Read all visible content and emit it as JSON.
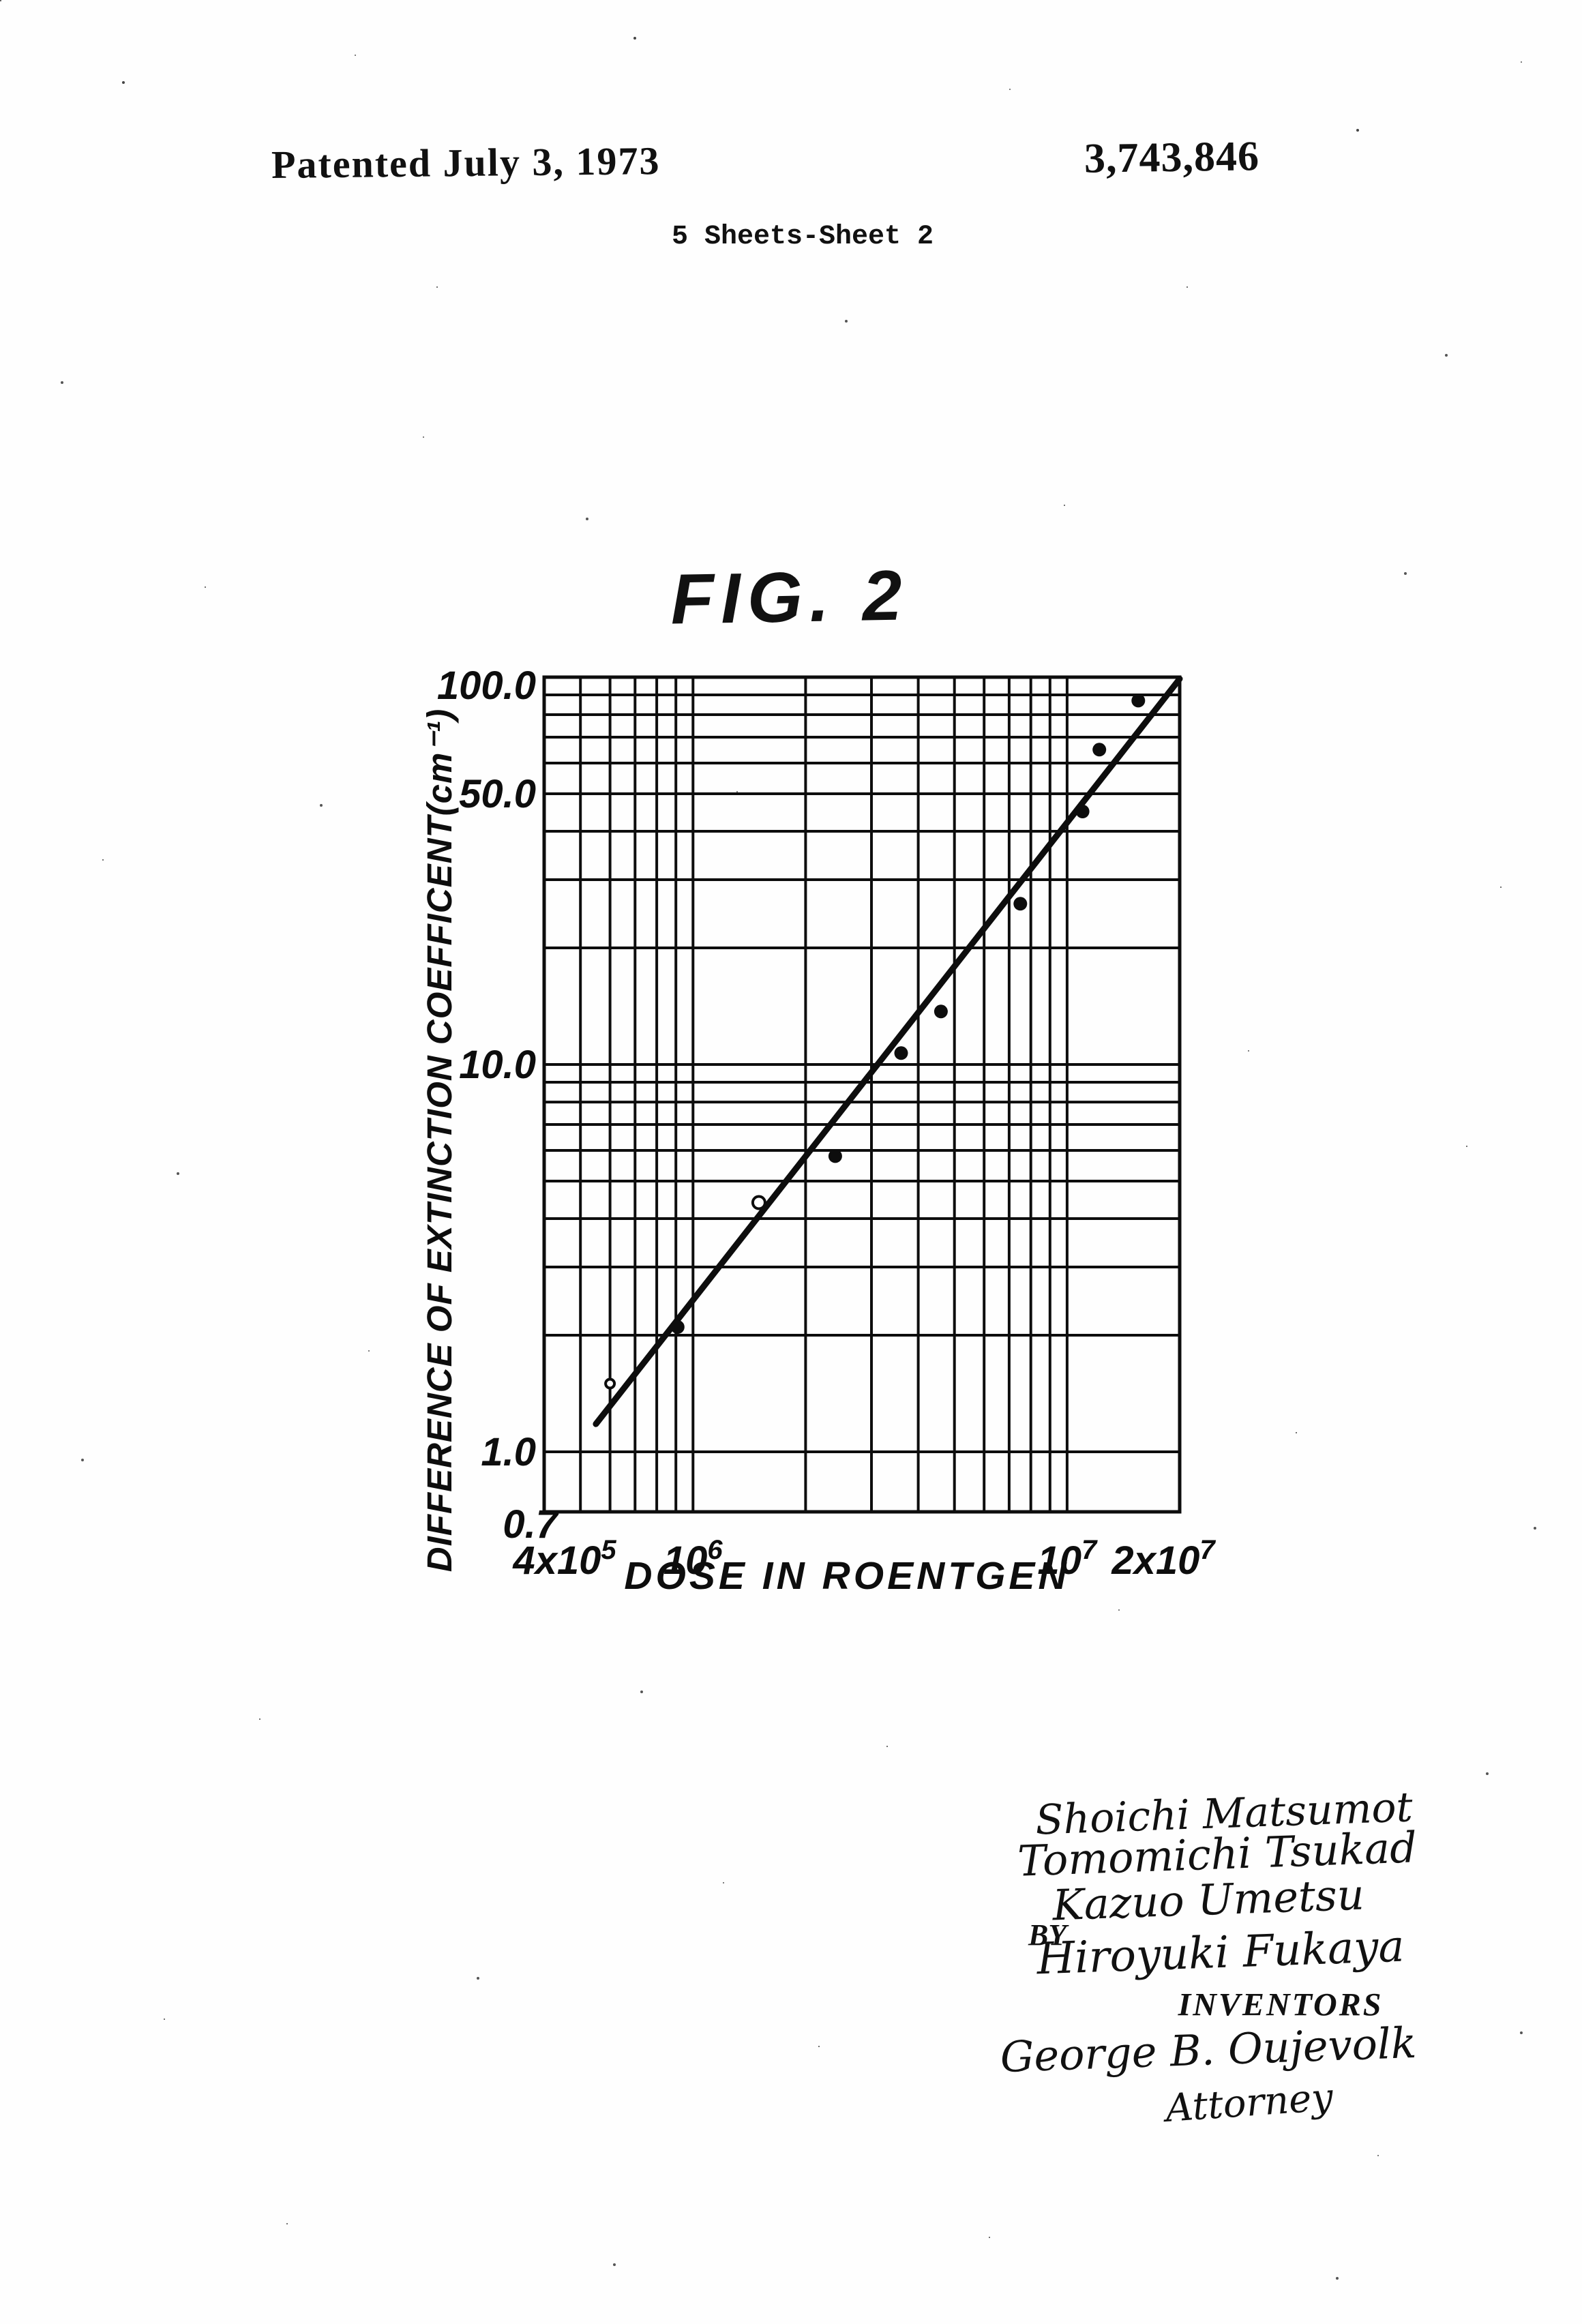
{
  "page": {
    "patented_line": "Patented July 3, 1973",
    "patent_number": "3,743,846",
    "sheet_info": "5 Sheets-Sheet 2",
    "figure_label": "FIG. 2"
  },
  "chart_data": {
    "type": "scatter",
    "title": "FIG. 2",
    "xlabel": "DOSE IN ROENTGEN",
    "ylabel": "DIFFERENCE OF EXTINCTION COEFFICENT(cm⁻¹)",
    "x_scale": "log",
    "y_scale": "log",
    "xlim": [
      400000,
      20000000
    ],
    "ylim": [
      0.7,
      100
    ],
    "grid": true,
    "x_ticks": [
      {
        "base": "4x10",
        "exp": "5",
        "value": 400000
      },
      {
        "base": "10",
        "exp": "6",
        "value": 1000000
      },
      {
        "base": "10",
        "exp": "7",
        "value": 10000000
      },
      {
        "base": "2x10",
        "exp": "7",
        "value": 20000000
      }
    ],
    "y_ticks": [
      {
        "label": "100.0",
        "value": 100
      },
      {
        "label": "50.0",
        "value": 50
      },
      {
        "label": "10.0",
        "value": 10
      },
      {
        "label": "1.0",
        "value": 1
      },
      {
        "label": "0.7",
        "value": 0.7
      }
    ],
    "x_gridlines": [
      500000,
      600000,
      700000,
      800000,
      900000,
      1000000,
      2000000,
      3000000,
      4000000,
      5000000,
      6000000,
      7000000,
      8000000,
      9000000,
      10000000
    ],
    "y_gridlines": [
      1,
      2,
      3,
      4,
      5,
      6,
      7,
      8,
      9,
      10,
      20,
      30,
      40,
      50,
      60,
      70,
      80,
      90,
      100
    ],
    "points": [
      {
        "x": 600000,
        "y": 1.5,
        "style": "open-small"
      },
      {
        "x": 910000,
        "y": 2.1,
        "style": "filled"
      },
      {
        "x": 1500000,
        "y": 4.4,
        "style": "open"
      },
      {
        "x": 2400000,
        "y": 5.8,
        "style": "filled"
      },
      {
        "x": 3600000,
        "y": 10.7,
        "style": "filled"
      },
      {
        "x": 4600000,
        "y": 13.7,
        "style": "filled"
      },
      {
        "x": 7500000,
        "y": 26,
        "style": "filled"
      },
      {
        "x": 11000000,
        "y": 45,
        "style": "filled"
      },
      {
        "x": 12200000,
        "y": 65,
        "style": "filled"
      },
      {
        "x": 15500000,
        "y": 87,
        "style": "filled"
      }
    ],
    "fit_line": {
      "x1": 550000,
      "y1": 1.18,
      "x2": 20000000,
      "y2": 99
    }
  },
  "signatures": {
    "names": [
      "Shoichi Matsumot",
      "Tomomichi Tsukad",
      "Kazuo Umetsu",
      "Hiroyuki Fukaya"
    ],
    "by_label": "BY",
    "inventors_label": "INVENTORS",
    "attorney_name": "George B. Oujevolk",
    "attorney_label": "Attorney"
  }
}
